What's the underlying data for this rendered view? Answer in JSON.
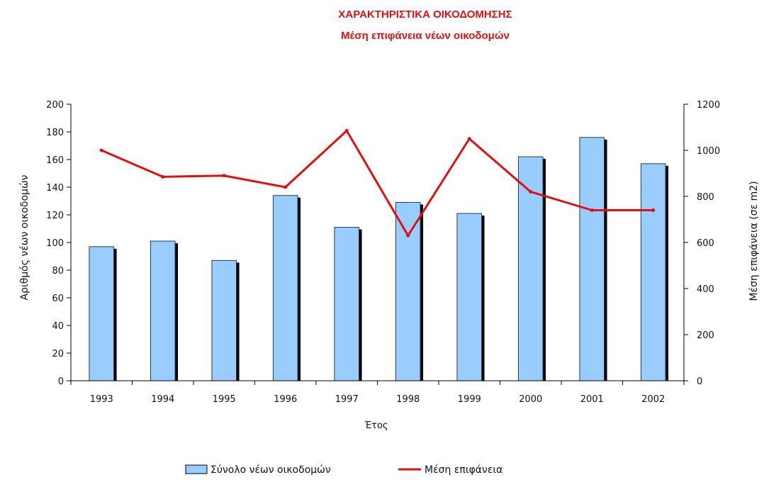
{
  "chart_data": {
    "type": "bar",
    "title": "ΧΑΡΑΚΤΗΡΙΣΤΙΚΑ ΟΙΚΟΔΟΜΗΣΗΣ",
    "subtitle": "Μέση επιφάνεια νέων οικοδομών",
    "xlabel": "Έτος",
    "ylabel_left": "Αριθμός νέων οικοδομών",
    "ylabel_right": "Μέση επιφάνεια (σε m2)",
    "categories": [
      "1993",
      "1994",
      "1995",
      "1996",
      "1997",
      "1998",
      "1999",
      "2000",
      "2001",
      "2002"
    ],
    "ylim_left": [
      0,
      200
    ],
    "ylim_right": [
      0,
      1200
    ],
    "yticks_left": [
      "0",
      "20",
      "40",
      "60",
      "80",
      "100",
      "120",
      "140",
      "160",
      "180",
      "200"
    ],
    "yticks_right": [
      "0",
      "200",
      "400",
      "600",
      "800",
      "1000",
      "1200"
    ],
    "legend_position": "bottom",
    "grid": false,
    "series": [
      {
        "name": "Σύνολο νέων οικοδομών",
        "type": "bar",
        "axis": "left",
        "color": "#99ccff",
        "values": [
          97,
          101,
          87,
          134,
          111,
          129,
          121,
          162,
          176,
          157
        ]
      },
      {
        "name": "Μέση επιφάνεια",
        "type": "line",
        "axis": "right",
        "color": "#e01010",
        "values": [
          1000,
          885,
          890,
          840,
          1085,
          630,
          1050,
          820,
          740,
          740
        ]
      }
    ]
  }
}
